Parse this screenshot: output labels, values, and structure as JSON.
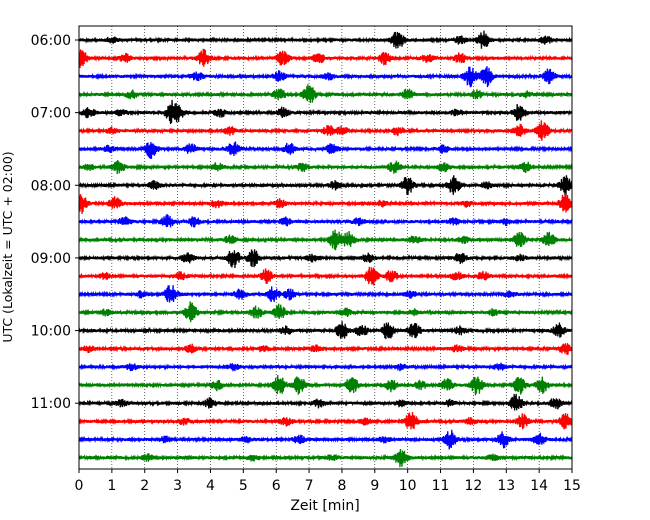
{
  "chart_data": {
    "type": "line",
    "title": "",
    "xlabel": "Zeit  [min]",
    "ylabel": "UTC (Lokalzeit = UTC + 02:00)",
    "xlim": [
      0,
      15
    ],
    "x_ticks": [
      "0",
      "1",
      "2",
      "3",
      "4",
      "5",
      "6",
      "7",
      "8",
      "9",
      "10",
      "11",
      "12",
      "13",
      "14",
      "15"
    ],
    "y_ticks": [
      "06:00",
      "07:00",
      "08:00",
      "09:00",
      "10:00",
      "11:00"
    ],
    "grid_x": true,
    "colors": [
      "#000000",
      "#ff0000",
      "#0000ff",
      "#008000"
    ],
    "traces": [
      {
        "start": "06:00",
        "color": "#000000",
        "events": [
          [
            9.7,
            1.0
          ],
          [
            12.3,
            0.9
          ],
          [
            11.6,
            0.4
          ],
          [
            14.2,
            0.35
          ],
          [
            1.0,
            0.3
          ]
        ]
      },
      {
        "start": "06:15",
        "color": "#ff0000",
        "events": [
          [
            0.05,
            1.0
          ],
          [
            3.8,
            0.9
          ],
          [
            6.2,
            0.8
          ],
          [
            9.3,
            0.6
          ],
          [
            11.6,
            0.5
          ],
          [
            1.4,
            0.4
          ],
          [
            7.3,
            0.5
          ],
          [
            10.6,
            0.4
          ]
        ]
      },
      {
        "start": "06:30",
        "color": "#0000ff",
        "events": [
          [
            11.9,
            1.0
          ],
          [
            12.4,
            1.0
          ],
          [
            14.3,
            0.7
          ],
          [
            6.1,
            0.5
          ],
          [
            3.6,
            0.4
          ],
          [
            7.6,
            0.3
          ]
        ]
      },
      {
        "start": "06:45",
        "color": "#008000",
        "events": [
          [
            7.0,
            1.0
          ],
          [
            6.1,
            0.6
          ],
          [
            1.6,
            0.4
          ],
          [
            10.0,
            0.5
          ],
          [
            12.1,
            0.4
          ],
          [
            13.6,
            0.3
          ]
        ]
      },
      {
        "start": "07:00",
        "color": "#000000",
        "events": [
          [
            2.8,
            0.9
          ],
          [
            3.0,
            0.8
          ],
          [
            13.4,
            0.9
          ],
          [
            6.2,
            0.5
          ],
          [
            0.3,
            0.5
          ],
          [
            1.3,
            0.3
          ],
          [
            4.3,
            0.4
          ],
          [
            11.5,
            0.3
          ]
        ]
      },
      {
        "start": "07:15",
        "color": "#ff0000",
        "events": [
          [
            14.1,
            1.0
          ],
          [
            13.4,
            0.6
          ],
          [
            7.6,
            0.5
          ],
          [
            8.0,
            0.4
          ],
          [
            9.7,
            0.4
          ],
          [
            1.0,
            0.3
          ],
          [
            4.6,
            0.4
          ]
        ]
      },
      {
        "start": "07:30",
        "color": "#0000ff",
        "events": [
          [
            2.2,
            0.9
          ],
          [
            4.7,
            0.7
          ],
          [
            3.4,
            0.5
          ],
          [
            6.4,
            0.6
          ],
          [
            7.7,
            0.5
          ],
          [
            11.1,
            0.4
          ],
          [
            0.9,
            0.3
          ]
        ]
      },
      {
        "start": "07:45",
        "color": "#008000",
        "events": [
          [
            1.2,
            0.6
          ],
          [
            9.6,
            0.6
          ],
          [
            13.6,
            0.5
          ],
          [
            4.2,
            0.4
          ],
          [
            6.8,
            0.4
          ],
          [
            0.3,
            0.3
          ],
          [
            11.1,
            0.4
          ]
        ]
      },
      {
        "start": "08:00",
        "color": "#000000",
        "events": [
          [
            10.0,
            1.0
          ],
          [
            11.4,
            0.9
          ],
          [
            14.8,
            1.0
          ],
          [
            2.3,
            0.4
          ],
          [
            7.8,
            0.4
          ],
          [
            12.4,
            0.3
          ]
        ]
      },
      {
        "start": "08:15",
        "color": "#ff0000",
        "events": [
          [
            0.05,
            1.0
          ],
          [
            14.8,
            1.0
          ],
          [
            1.1,
            0.6
          ],
          [
            4.2,
            0.4
          ],
          [
            6.1,
            0.4
          ],
          [
            9.2,
            0.3
          ],
          [
            11.8,
            0.3
          ]
        ]
      },
      {
        "start": "08:30",
        "color": "#0000ff",
        "events": [
          [
            2.7,
            0.7
          ],
          [
            3.5,
            0.5
          ],
          [
            1.4,
            0.5
          ],
          [
            6.3,
            0.4
          ],
          [
            8.5,
            0.3
          ],
          [
            11.4,
            0.3
          ],
          [
            13.0,
            0.3
          ]
        ]
      },
      {
        "start": "08:45",
        "color": "#008000",
        "events": [
          [
            7.8,
            1.0
          ],
          [
            8.2,
            0.8
          ],
          [
            13.4,
            0.9
          ],
          [
            14.3,
            0.8
          ],
          [
            4.6,
            0.4
          ],
          [
            10.2,
            0.4
          ],
          [
            11.7,
            0.3
          ]
        ]
      },
      {
        "start": "09:00",
        "color": "#000000",
        "events": [
          [
            4.7,
            1.0
          ],
          [
            5.3,
            0.9
          ],
          [
            3.3,
            0.5
          ],
          [
            11.6,
            0.5
          ],
          [
            8.8,
            0.4
          ],
          [
            7.1,
            0.3
          ],
          [
            13.4,
            0.3
          ]
        ]
      },
      {
        "start": "09:15",
        "color": "#ff0000",
        "events": [
          [
            8.9,
            1.0
          ],
          [
            5.7,
            0.7
          ],
          [
            9.5,
            0.6
          ],
          [
            3.1,
            0.4
          ],
          [
            12.3,
            0.4
          ],
          [
            11.5,
            0.4
          ],
          [
            0.8,
            0.3
          ]
        ]
      },
      {
        "start": "09:30",
        "color": "#0000ff",
        "events": [
          [
            2.8,
            1.0
          ],
          [
            5.9,
            0.8
          ],
          [
            6.4,
            0.5
          ],
          [
            4.9,
            0.5
          ],
          [
            1.9,
            0.3
          ],
          [
            10.1,
            0.3
          ],
          [
            13.1,
            0.3
          ]
        ]
      },
      {
        "start": "09:45",
        "color": "#008000",
        "events": [
          [
            3.4,
            1.0
          ],
          [
            6.1,
            0.9
          ],
          [
            5.4,
            0.6
          ],
          [
            8.1,
            0.4
          ],
          [
            12.6,
            0.3
          ],
          [
            0.8,
            0.3
          ],
          [
            10.2,
            0.3
          ]
        ]
      },
      {
        "start": "10:00",
        "color": "#000000",
        "events": [
          [
            8.0,
            0.9
          ],
          [
            9.4,
            0.9
          ],
          [
            10.2,
            0.8
          ],
          [
            8.6,
            0.6
          ],
          [
            14.6,
            0.7
          ],
          [
            11.6,
            0.4
          ],
          [
            6.3,
            0.4
          ]
        ]
      },
      {
        "start": "10:15",
        "color": "#ff0000",
        "events": [
          [
            14.8,
            0.6
          ],
          [
            3.4,
            0.4
          ],
          [
            7.2,
            0.3
          ],
          [
            11.5,
            0.3
          ],
          [
            5.6,
            0.3
          ],
          [
            0.3,
            0.3
          ]
        ]
      },
      {
        "start": "10:30",
        "color": "#0000ff",
        "events": [
          [
            4.7,
            0.3
          ],
          [
            9.8,
            0.3
          ],
          [
            12.8,
            0.3
          ],
          [
            1.6,
            0.3
          ]
        ]
      },
      {
        "start": "10:45",
        "color": "#008000",
        "events": [
          [
            6.1,
            1.0
          ],
          [
            6.7,
            0.9
          ],
          [
            8.3,
            0.9
          ],
          [
            12.1,
            1.0
          ],
          [
            13.4,
            0.9
          ],
          [
            14.1,
            0.8
          ],
          [
            9.5,
            0.6
          ],
          [
            11.2,
            0.6
          ],
          [
            4.2,
            0.5
          ],
          [
            10.4,
            0.4
          ]
        ]
      },
      {
        "start": "11:00",
        "color": "#000000",
        "events": [
          [
            13.3,
            1.0
          ],
          [
            4.0,
            0.5
          ],
          [
            14.5,
            0.6
          ],
          [
            7.3,
            0.4
          ],
          [
            1.3,
            0.3
          ],
          [
            9.8,
            0.3
          ],
          [
            11.3,
            0.3
          ]
        ]
      },
      {
        "start": "11:15",
        "color": "#ff0000",
        "events": [
          [
            10.1,
            1.0
          ],
          [
            13.5,
            0.7
          ],
          [
            14.8,
            0.8
          ],
          [
            6.3,
            0.4
          ],
          [
            8.7,
            0.3
          ],
          [
            3.2,
            0.3
          ],
          [
            11.9,
            0.3
          ]
        ]
      },
      {
        "start": "11:30",
        "color": "#0000ff",
        "events": [
          [
            11.3,
            1.0
          ],
          [
            12.9,
            0.8
          ],
          [
            14.0,
            0.6
          ],
          [
            6.7,
            0.4
          ],
          [
            5.1,
            0.3
          ],
          [
            2.6,
            0.3
          ],
          [
            9.3,
            0.3
          ]
        ]
      },
      {
        "start": "11:45",
        "color": "#008000",
        "events": [
          [
            9.8,
            0.9
          ],
          [
            5.3,
            0.3
          ],
          [
            12.6,
            0.3
          ],
          [
            2.1,
            0.3
          ],
          [
            7.7,
            0.3
          ]
        ]
      }
    ]
  }
}
